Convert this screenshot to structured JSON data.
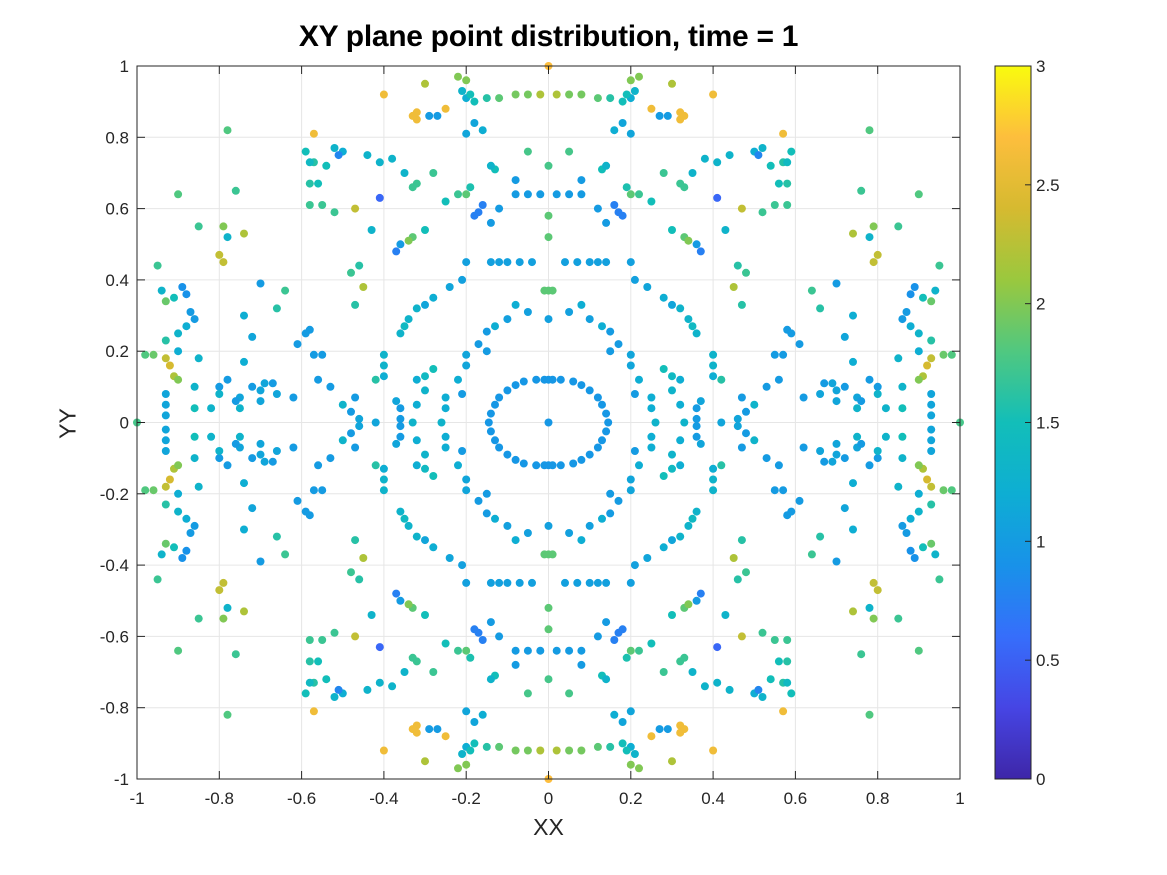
{
  "chart_data": {
    "type": "scatter",
    "title": "XY plane point distribution, time = 1",
    "xlabel": "XX",
    "ylabel": "YY",
    "xlim": [
      -1,
      1
    ],
    "ylim": [
      -1,
      1
    ],
    "xticks": [
      "-1",
      "-0.8",
      "-0.6",
      "-0.4",
      "-0.2",
      "0",
      "0.2",
      "0.4",
      "0.6",
      "0.8",
      "1"
    ],
    "yticks": [
      "-1",
      "-0.8",
      "-0.6",
      "-0.4",
      "-0.2",
      "0",
      "0.2",
      "0.4",
      "0.6",
      "0.8",
      "1"
    ],
    "grid": true,
    "colorbar": {
      "colormap": "parula",
      "limits": [
        0,
        3
      ],
      "ticks": [
        "0",
        "0.5",
        "1",
        "1.5",
        "2",
        "2.5",
        "3"
      ]
    },
    "symmetry": "four-fold mirror (points listed for the first quadrant, reflected across both axes)",
    "points_first_quadrant": [
      [
        0,
        0,
        0.95
      ],
      [
        0.01,
        0.12,
        0.95
      ],
      [
        0.03,
        0.12,
        0.95
      ],
      [
        0.06,
        0.115,
        0.95
      ],
      [
        0.08,
        0.105,
        0.95
      ],
      [
        0.1,
        0.09,
        0.95
      ],
      [
        0.12,
        0.07,
        0.95
      ],
      [
        0.13,
        0.05,
        0.95
      ],
      [
        0.14,
        0.025,
        0.95
      ],
      [
        0.145,
        0.0,
        0.95
      ],
      [
        0,
        0.12,
        0.95
      ],
      [
        0,
        0.29,
        1.05
      ],
      [
        0.05,
        0.31,
        1.05
      ],
      [
        0.1,
        0.29,
        1.05
      ],
      [
        0.15,
        0.255,
        1.0
      ],
      [
        0.17,
        0.22,
        1.0
      ],
      [
        0.2,
        0.19,
        1.1
      ],
      [
        0.2,
        0.16,
        1.1
      ],
      [
        0.22,
        0.12,
        1.2
      ],
      [
        0.25,
        0.07,
        1.2
      ],
      [
        0.25,
        0.04,
        1.2
      ],
      [
        0.26,
        0.0,
        1.3
      ],
      [
        0.21,
        0.08,
        1.0
      ],
      [
        0.15,
        0.2,
        1.0
      ],
      [
        0.13,
        0.27,
        1.2
      ],
      [
        0.08,
        0.33,
        1.2
      ],
      [
        0,
        0.37,
        1.85
      ],
      [
        0.01,
        0.37,
        1.85
      ],
      [
        0.04,
        0.45,
        1.05
      ],
      [
        0.07,
        0.45,
        1.05
      ],
      [
        0.1,
        0.45,
        1.05
      ],
      [
        0.12,
        0.45,
        1.05
      ],
      [
        0.14,
        0.45,
        1.05
      ],
      [
        0.2,
        0.45,
        1.05
      ],
      [
        0.21,
        0.4,
        1.05
      ],
      [
        0.24,
        0.38,
        1.1
      ],
      [
        0.28,
        0.35,
        1.2
      ],
      [
        0.3,
        0.33,
        1.1
      ],
      [
        0.32,
        0.32,
        1.3
      ],
      [
        0.34,
        0.29,
        1.3
      ],
      [
        0.35,
        0.27,
        1.4
      ],
      [
        0.36,
        0.25,
        1.3
      ],
      [
        0,
        0.52,
        1.85
      ],
      [
        0,
        0.58,
        1.85
      ],
      [
        0.02,
        0.64,
        1.0
      ],
      [
        0.05,
        0.64,
        1.0
      ],
      [
        0.08,
        0.64,
        1.0
      ],
      [
        0.12,
        0.6,
        1.0
      ],
      [
        0.14,
        0.56,
        1.0
      ],
      [
        0.16,
        0.61,
        0.75
      ],
      [
        0.17,
        0.59,
        0.75
      ],
      [
        0.18,
        0.58,
        0.75
      ],
      [
        0.19,
        0.66,
        1.55
      ],
      [
        0.2,
        0.64,
        1.85
      ],
      [
        0.22,
        0.64,
        1.7
      ],
      [
        0.25,
        0.62,
        1.5
      ],
      [
        0,
        0.72,
        1.75
      ],
      [
        0.05,
        0.76,
        1.75
      ],
      [
        0.08,
        0.68,
        1.0
      ],
      [
        0.13,
        0.71,
        1.5
      ],
      [
        0.14,
        0.72,
        1.3
      ],
      [
        0.16,
        0.82,
        1.2
      ],
      [
        0.18,
        0.84,
        1.1
      ],
      [
        0.2,
        0.81,
        1.1
      ],
      [
        0.2,
        0.91,
        1.2
      ],
      [
        0.21,
        0.93,
        1.3
      ],
      [
        0.22,
        0.97,
        2.0
      ],
      [
        0.2,
        0.96,
        2.0
      ],
      [
        0.02,
        0.92,
        2.2
      ],
      [
        0.05,
        0.92,
        1.95
      ],
      [
        0.08,
        0.92,
        1.95
      ],
      [
        0.12,
        0.91,
        1.85
      ],
      [
        0.15,
        0.91,
        1.6
      ],
      [
        0.18,
        0.9,
        1.5
      ],
      [
        0.19,
        0.92,
        1.5
      ],
      [
        0,
        1.0,
        2.7
      ],
      [
        0.25,
        0.88,
        2.6
      ],
      [
        0.27,
        0.86,
        1.0
      ],
      [
        0.29,
        0.86,
        1.0
      ],
      [
        0.3,
        0.95,
        2.2
      ],
      [
        0.32,
        0.85,
        2.6
      ],
      [
        0.33,
        0.86,
        2.6
      ],
      [
        0.32,
        0.87,
        2.6
      ],
      [
        0.4,
        0.92,
        2.6
      ],
      [
        0.28,
        0.7,
        1.7
      ],
      [
        0.32,
        0.67,
        1.7
      ],
      [
        0.35,
        0.7,
        1.3
      ],
      [
        0.33,
        0.66,
        1.7
      ],
      [
        0.3,
        0.54,
        1.5
      ],
      [
        0.33,
        0.52,
        1.85
      ],
      [
        0.36,
        0.5,
        1.0
      ],
      [
        0.37,
        0.48,
        0.75
      ],
      [
        0.34,
        0.51,
        2.0
      ],
      [
        0.38,
        0.74,
        1.3
      ],
      [
        0.41,
        0.63,
        0.55
      ],
      [
        0.41,
        0.73,
        1.3
      ],
      [
        0.43,
        0.54,
        1.3
      ],
      [
        0.44,
        0.75,
        1.3
      ],
      [
        0.45,
        0.38,
        2.2
      ],
      [
        0.47,
        0.6,
        2.3
      ],
      [
        0.48,
        0.42,
        1.7
      ],
      [
        0.46,
        0.44,
        1.6
      ],
      [
        0.47,
        0.33,
        1.6
      ],
      [
        0.5,
        0.76,
        1.2
      ],
      [
        0.52,
        0.77,
        1.3
      ],
      [
        0.52,
        0.59,
        1.7
      ],
      [
        0.51,
        0.75,
        0.8
      ],
      [
        0.54,
        0.72,
        1.5
      ],
      [
        0.56,
        0.67,
        1.5
      ],
      [
        0.57,
        0.73,
        1.6
      ],
      [
        0.58,
        0.67,
        1.6
      ],
      [
        0.57,
        0.81,
        2.6
      ],
      [
        0.58,
        0.73,
        1.4
      ],
      [
        0.59,
        0.76,
        1.5
      ],
      [
        0.58,
        0.61,
        1.7
      ],
      [
        0.55,
        0.61,
        1.7
      ],
      [
        0.58,
        0.26,
        1.0
      ],
      [
        0.59,
        0.25,
        1.0
      ],
      [
        0.55,
        0.19,
        1.0
      ],
      [
        0.57,
        0.19,
        1.0
      ],
      [
        0.61,
        0.22,
        1.0
      ],
      [
        0.64,
        0.37,
        1.7
      ],
      [
        0.66,
        0.32,
        1.6
      ],
      [
        0.7,
        0.39,
        1.0
      ],
      [
        0.72,
        0.24,
        1.1
      ],
      [
        0.74,
        0.3,
        1.2
      ],
      [
        0.74,
        0.17,
        1.2
      ],
      [
        0.74,
        0.53,
        2.2
      ],
      [
        0.76,
        0.65,
        1.7
      ],
      [
        0.78,
        0.82,
        1.8
      ],
      [
        0.78,
        0.52,
        1.3
      ],
      [
        0.79,
        0.45,
        2.3
      ],
      [
        0.8,
        0.47,
        2.3
      ],
      [
        0.79,
        0.55,
        2.0
      ],
      [
        0.78,
        0.12,
        1.0
      ],
      [
        0.8,
        0.1,
        1.0
      ],
      [
        0.85,
        0.55,
        1.7
      ],
      [
        0.86,
        0.29,
        1.0
      ],
      [
        0.87,
        0.31,
        1.0
      ],
      [
        0.88,
        0.27,
        1.2
      ],
      [
        0.88,
        0.36,
        0.9
      ],
      [
        0.89,
        0.38,
        0.9
      ],
      [
        0.9,
        0.64,
        1.8
      ],
      [
        0.91,
        0.35,
        1.5
      ],
      [
        0.93,
        0.34,
        1.9
      ],
      [
        0.94,
        0.37,
        1.3
      ],
      [
        0.95,
        0.44,
        1.7
      ],
      [
        0.91,
        0.13,
        2.2
      ],
      [
        0.92,
        0.16,
        2.4
      ],
      [
        0.93,
        0.18,
        2.3
      ],
      [
        0.9,
        0.12,
        2.0
      ],
      [
        0.93,
        0.08,
        1.1
      ],
      [
        0.93,
        0.05,
        1.1
      ],
      [
        0.93,
        0.02,
        1.1
      ],
      [
        0.96,
        0.19,
        1.9
      ],
      [
        0.98,
        0.19,
        1.8
      ],
      [
        1.0,
        0.0,
        1.75
      ],
      [
        0.93,
        0.23,
        1.6
      ],
      [
        0.9,
        0.2,
        1.2
      ],
      [
        0.86,
        0.1,
        1.3
      ],
      [
        0.9,
        0.25,
        1.3
      ],
      [
        0.85,
        0.18,
        1.3
      ],
      [
        0.82,
        0.04,
        1.3
      ],
      [
        0.62,
        0.07,
        1.0
      ],
      [
        0.66,
        0.08,
        1.1
      ],
      [
        0.67,
        0.11,
        1.0
      ],
      [
        0.69,
        0.11,
        1.1
      ],
      [
        0.7,
        0.09,
        1.1
      ],
      [
        0.72,
        0.1,
        1.0
      ],
      [
        0.75,
        0.07,
        1.1
      ],
      [
        0.75,
        0.04,
        1.3
      ],
      [
        0.7,
        0.06,
        1.1
      ],
      [
        0.76,
        0.06,
        1.0
      ],
      [
        0.8,
        0.08,
        1.3
      ],
      [
        0.86,
        0.04,
        1.5
      ],
      [
        0.53,
        0.1,
        1.0
      ],
      [
        0.56,
        0.12,
        1.0
      ],
      [
        0.47,
        0.07,
        1.0
      ],
      [
        0.48,
        0.03,
        1.0
      ],
      [
        0.5,
        0.05,
        1.3
      ],
      [
        0.46,
        0.01,
        1.1
      ],
      [
        0.42,
        0.0,
        1.1
      ],
      [
        0.4,
        0.19,
        1.3
      ],
      [
        0.4,
        0.16,
        1.3
      ],
      [
        0.4,
        0.13,
        1.2
      ],
      [
        0.42,
        0.12,
        1.6
      ],
      [
        0.36,
        0.04,
        1.0
      ],
      [
        0.37,
        0.06,
        1.1
      ],
      [
        0.36,
        0.01,
        1.0
      ],
      [
        0.33,
        0.0,
        1.3
      ],
      [
        0.32,
        0.05,
        1.2
      ],
      [
        0.32,
        0.12,
        1.2
      ],
      [
        0.28,
        0.15,
        1.5
      ],
      [
        0.3,
        0.13,
        1.4
      ],
      [
        0.3,
        0.09,
        1.3
      ]
    ]
  }
}
